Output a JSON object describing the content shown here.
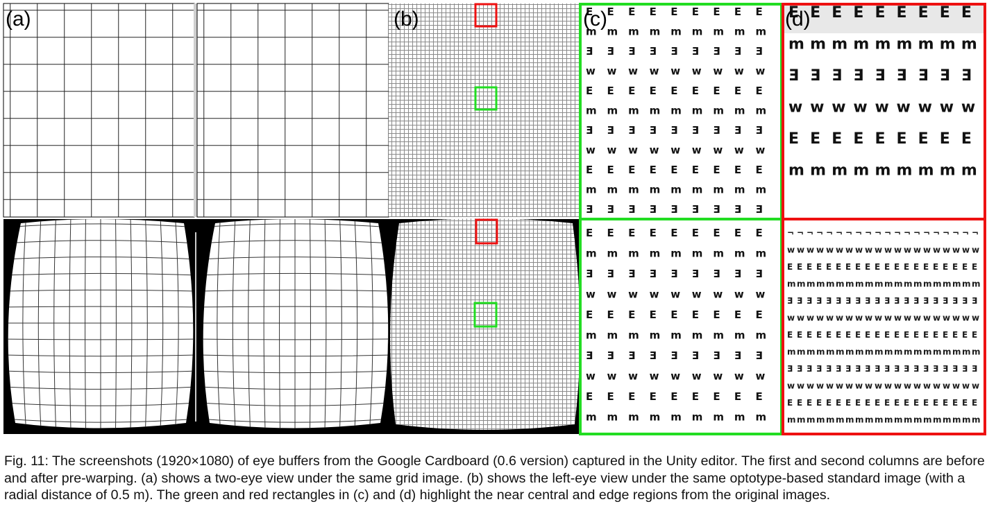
{
  "figure": {
    "panel_labels": {
      "a": "(a)",
      "b": "(b)",
      "c": "(c)",
      "d": "(d)"
    },
    "colors": {
      "near_region": "#22dd22",
      "edge_region": "#ee1111",
      "background": "#000000"
    },
    "optotype_rows": [
      "E",
      "m",
      "Ǝ",
      "w",
      "E",
      "m",
      "Ǝ",
      "w",
      "E",
      "m",
      "Ǝ"
    ],
    "optotype_rows_d_bottom": [
      "¬",
      "w",
      "E",
      "m",
      "Ǝ",
      "w",
      "E",
      "m",
      "Ǝ",
      "w",
      "E",
      "m"
    ]
  },
  "caption": {
    "text": "Fig. 11: The screenshots (1920×1080) of eye buffers from the Google Cardboard (0.6 version) captured in the Unity editor. The first and second columns are before and after pre-warping. (a) shows a two-eye view under the same grid image. (b) shows the left-eye view under the same optotype-based standard image (with a radial distance of 0.5 m). The green and red rectangles in (c) and (d) highlight the near central and edge regions from the original images."
  }
}
